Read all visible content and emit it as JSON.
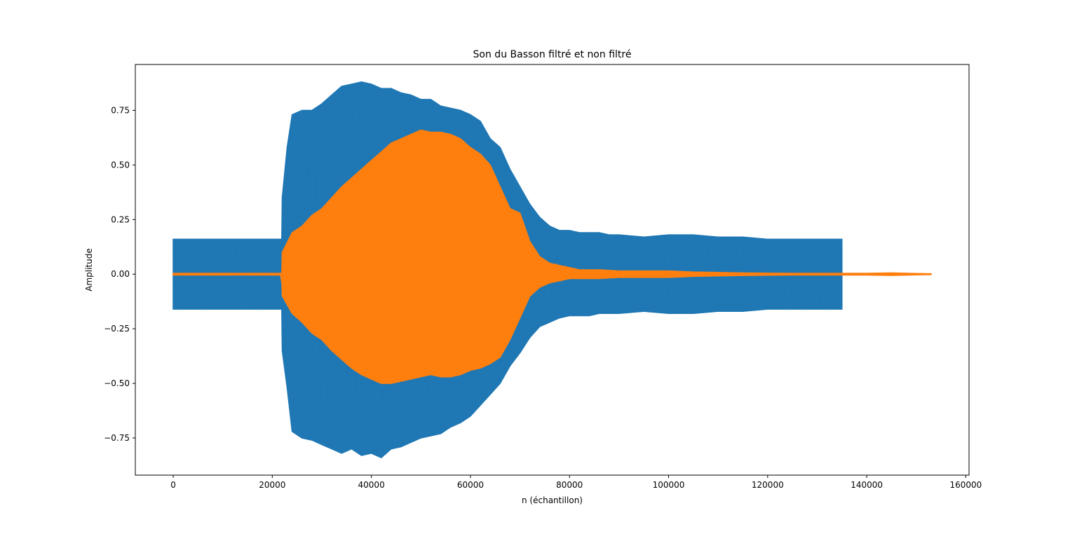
{
  "chart_data": {
    "type": "line",
    "title": "Son du Basson filtré et non filtré",
    "xlabel": "n (échantillon)",
    "ylabel": "Amplitude",
    "xlim": [
      -7650,
      160650
    ],
    "ylim": [
      -0.92,
      0.96
    ],
    "x_ticks": [
      0,
      20000,
      40000,
      60000,
      80000,
      100000,
      120000,
      140000,
      160000
    ],
    "x_tick_labels": [
      "0",
      "20000",
      "40000",
      "60000",
      "80000",
      "100000",
      "120000",
      "140000",
      "160000"
    ],
    "y_ticks": [
      -0.75,
      -0.5,
      -0.25,
      0.0,
      0.25,
      0.5,
      0.75
    ],
    "y_tick_labels": [
      "−0.75",
      "−0.50",
      "−0.25",
      "0.00",
      "0.25",
      "0.50",
      "0.75"
    ],
    "grid": false,
    "series": [
      {
        "color": "#1f77b4",
        "description_style": "oscillating waveform envelope",
        "envelope_x": [
          0,
          21900,
          22000,
          23000,
          24000,
          26000,
          28000,
          30000,
          32000,
          34000,
          36000,
          38000,
          40000,
          42000,
          44000,
          46000,
          48000,
          50000,
          52000,
          54000,
          56000,
          58000,
          60000,
          62000,
          64000,
          66000,
          68000,
          70000,
          72000,
          74000,
          76000,
          78000,
          80000,
          82000,
          84000,
          86000,
          88000,
          90000,
          95000,
          100000,
          105000,
          110000,
          115000,
          120000,
          125000,
          130000,
          135000
        ],
        "envelope_upper": [
          0.16,
          0.16,
          0.35,
          0.58,
          0.73,
          0.75,
          0.75,
          0.78,
          0.82,
          0.86,
          0.87,
          0.88,
          0.87,
          0.85,
          0.85,
          0.83,
          0.82,
          0.8,
          0.8,
          0.77,
          0.76,
          0.75,
          0.73,
          0.7,
          0.62,
          0.58,
          0.48,
          0.4,
          0.32,
          0.26,
          0.22,
          0.2,
          0.2,
          0.19,
          0.19,
          0.19,
          0.18,
          0.18,
          0.17,
          0.18,
          0.18,
          0.17,
          0.17,
          0.16,
          0.16,
          0.16,
          0.16
        ],
        "envelope_lower": [
          -0.16,
          -0.16,
          -0.35,
          -0.52,
          -0.72,
          -0.75,
          -0.76,
          -0.78,
          -0.8,
          -0.82,
          -0.8,
          -0.83,
          -0.82,
          -0.84,
          -0.8,
          -0.79,
          -0.77,
          -0.75,
          -0.74,
          -0.73,
          -0.7,
          -0.68,
          -0.65,
          -0.6,
          -0.55,
          -0.5,
          -0.42,
          -0.36,
          -0.29,
          -0.24,
          -0.22,
          -0.2,
          -0.19,
          -0.19,
          -0.19,
          -0.18,
          -0.18,
          -0.18,
          -0.17,
          -0.18,
          -0.18,
          -0.17,
          -0.17,
          -0.16,
          -0.16,
          -0.16,
          -0.16
        ]
      },
      {
        "color": "#ff7f0e",
        "description_style": "oscillating waveform envelope",
        "envelope_x": [
          0,
          21900,
          22000,
          24000,
          26000,
          28000,
          30000,
          32000,
          34000,
          36000,
          38000,
          40000,
          42000,
          44000,
          46000,
          48000,
          50000,
          52000,
          54000,
          56000,
          58000,
          60000,
          62000,
          64000,
          66000,
          68000,
          70000,
          72000,
          74000,
          76000,
          78000,
          80000,
          82000,
          84000,
          86000,
          90000,
          95000,
          100000,
          105000,
          110000,
          115000,
          120000,
          125000,
          130000,
          135000,
          140000,
          145000,
          150000,
          153000
        ],
        "envelope_upper": [
          0.004,
          0.004,
          0.1,
          0.19,
          0.22,
          0.27,
          0.3,
          0.35,
          0.4,
          0.44,
          0.48,
          0.52,
          0.56,
          0.6,
          0.62,
          0.64,
          0.66,
          0.65,
          0.65,
          0.64,
          0.62,
          0.58,
          0.55,
          0.5,
          0.4,
          0.3,
          0.28,
          0.15,
          0.08,
          0.05,
          0.04,
          0.03,
          0.02,
          0.02,
          0.02,
          0.015,
          0.015,
          0.015,
          0.01,
          0.008,
          0.006,
          0.005,
          0.004,
          0.004,
          0.004,
          0.004,
          0.006,
          0.003,
          0.002
        ],
        "envelope_lower": [
          -0.004,
          -0.004,
          -0.1,
          -0.18,
          -0.22,
          -0.27,
          -0.3,
          -0.35,
          -0.39,
          -0.43,
          -0.46,
          -0.48,
          -0.5,
          -0.5,
          -0.49,
          -0.48,
          -0.47,
          -0.46,
          -0.47,
          -0.47,
          -0.46,
          -0.44,
          -0.43,
          -0.41,
          -0.38,
          -0.3,
          -0.2,
          -0.1,
          -0.06,
          -0.04,
          -0.03,
          -0.02,
          -0.02,
          -0.02,
          -0.02,
          -0.015,
          -0.015,
          -0.015,
          -0.01,
          -0.008,
          -0.006,
          -0.005,
          -0.004,
          -0.004,
          -0.004,
          -0.004,
          -0.006,
          -0.003,
          -0.002
        ]
      }
    ]
  }
}
